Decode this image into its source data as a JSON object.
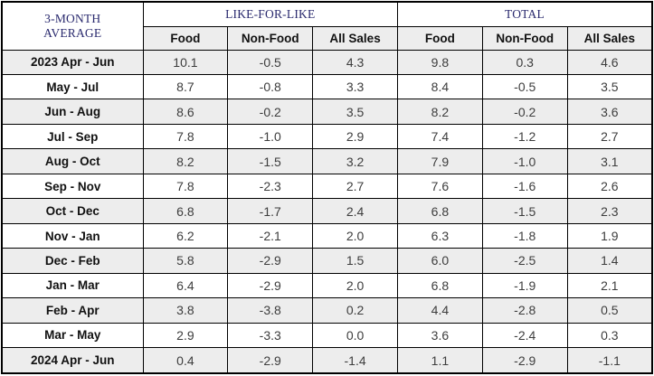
{
  "table": {
    "corner": {
      "line1": "3-MONTH",
      "line2": "AVERAGE"
    },
    "groups": [
      {
        "label": "LIKE-FOR-LIKE"
      },
      {
        "label": "TOTAL"
      }
    ],
    "sub_headers": [
      "Food",
      "Non-Food",
      "All Sales",
      "Food",
      "Non-Food",
      "All Sales"
    ],
    "rows": [
      {
        "period": "2023 Apr - Jun",
        "values": [
          "10.1",
          "-0.5",
          "4.3",
          "9.8",
          "0.3",
          "4.6"
        ]
      },
      {
        "period": "May - Jul",
        "values": [
          "8.7",
          "-0.8",
          "3.3",
          "8.4",
          "-0.5",
          "3.5"
        ]
      },
      {
        "period": "Jun - Aug",
        "values": [
          "8.6",
          "-0.2",
          "3.5",
          "8.2",
          "-0.2",
          "3.6"
        ]
      },
      {
        "period": "Jul - Sep",
        "values": [
          "7.8",
          "-1.0",
          "2.9",
          "7.4",
          "-1.2",
          "2.7"
        ]
      },
      {
        "period": "Aug - Oct",
        "values": [
          "8.2",
          "-1.5",
          "3.2",
          "7.9",
          "-1.0",
          "3.1"
        ]
      },
      {
        "period": "Sep - Nov",
        "values": [
          "7.8",
          "-2.3",
          "2.7",
          "7.6",
          "-1.6",
          "2.6"
        ]
      },
      {
        "period": "Oct - Dec",
        "values": [
          "6.8",
          "-1.7",
          "2.4",
          "6.8",
          "-1.5",
          "2.3"
        ]
      },
      {
        "period": "Nov - Jan",
        "values": [
          "6.2",
          "-2.1",
          "2.0",
          "6.3",
          "-1.8",
          "1.9"
        ]
      },
      {
        "period": "Dec - Feb",
        "values": [
          "5.8",
          "-2.9",
          "1.5",
          "6.0",
          "-2.5",
          "1.4"
        ]
      },
      {
        "period": "Jan - Mar",
        "values": [
          "6.4",
          "-2.9",
          "2.0",
          "6.8",
          "-1.9",
          "2.1"
        ]
      },
      {
        "period": "Feb - Apr",
        "values": [
          "3.8",
          "-3.8",
          "0.2",
          "4.4",
          "-2.8",
          "0.5"
        ]
      },
      {
        "period": "Mar - May",
        "values": [
          "2.9",
          "-3.3",
          "0.0",
          "3.6",
          "-2.4",
          "0.3"
        ]
      },
      {
        "period": "2024 Apr - Jun",
        "values": [
          "0.4",
          "-2.9",
          "-1.4",
          "1.1",
          "-2.9",
          "-1.1"
        ]
      }
    ]
  },
  "colors": {
    "header_text": "#2a2a6e",
    "row_stripe": "#ededed",
    "border": "#000000",
    "value_text": "#3d3d3d"
  },
  "chart_data": {
    "type": "table",
    "title": "3-Month Average",
    "column_groups": [
      "LIKE-FOR-LIKE",
      "TOTAL"
    ],
    "columns": [
      "3-Month Average",
      "Like-for-Like Food",
      "Like-for-Like Non-Food",
      "Like-for-Like All Sales",
      "Total Food",
      "Total Non-Food",
      "Total All Sales"
    ],
    "rows": [
      [
        "2023 Apr - Jun",
        10.1,
        -0.5,
        4.3,
        9.8,
        0.3,
        4.6
      ],
      [
        "May - Jul",
        8.7,
        -0.8,
        3.3,
        8.4,
        -0.5,
        3.5
      ],
      [
        "Jun - Aug",
        8.6,
        -0.2,
        3.5,
        8.2,
        -0.2,
        3.6
      ],
      [
        "Jul - Sep",
        7.8,
        -1.0,
        2.9,
        7.4,
        -1.2,
        2.7
      ],
      [
        "Aug - Oct",
        8.2,
        -1.5,
        3.2,
        7.9,
        -1.0,
        3.1
      ],
      [
        "Sep - Nov",
        7.8,
        -2.3,
        2.7,
        7.6,
        -1.6,
        2.6
      ],
      [
        "Oct - Dec",
        6.8,
        -1.7,
        2.4,
        6.8,
        -1.5,
        2.3
      ],
      [
        "Nov - Jan",
        6.2,
        -2.1,
        2.0,
        6.3,
        -1.8,
        1.9
      ],
      [
        "Dec - Feb",
        5.8,
        -2.9,
        1.5,
        6.0,
        -2.5,
        1.4
      ],
      [
        "Jan - Mar",
        6.4,
        -2.9,
        2.0,
        6.8,
        -1.9,
        2.1
      ],
      [
        "Feb - Apr",
        3.8,
        -3.8,
        0.2,
        4.4,
        -2.8,
        0.5
      ],
      [
        "Mar - May",
        2.9,
        -3.3,
        0.0,
        3.6,
        -2.4,
        0.3
      ],
      [
        "2024 Apr - Jun",
        0.4,
        -2.9,
        -1.4,
        1.1,
        -2.9,
        -1.1
      ]
    ]
  }
}
